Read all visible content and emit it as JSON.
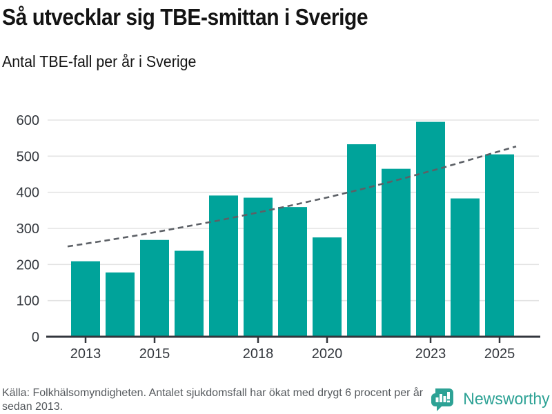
{
  "header": {
    "title": "Så utvecklar sig TBE-smittan i Sverige",
    "subtitle": "Antal TBE-fall per år i Sverige"
  },
  "chart_data": {
    "type": "bar",
    "title": "Så utvecklar sig TBE-smittan i Sverige",
    "subtitle": "Antal TBE-fall per år i Sverige",
    "categories": [
      2013,
      2014,
      2015,
      2016,
      2017,
      2018,
      2019,
      2020,
      2021,
      2022,
      2023,
      2024,
      2025
    ],
    "values": [
      209,
      178,
      268,
      238,
      391,
      385,
      359,
      275,
      533,
      465,
      595,
      383,
      505
    ],
    "series_name": "Antal TBE-fall per år",
    "trend": {
      "type": "line",
      "style": "dashed",
      "description": "Trend: ökning med drygt 6 procent per år sedan 2013",
      "values": [
        250,
        266,
        283,
        302,
        321,
        342,
        364,
        387,
        412,
        439,
        467,
        497,
        527
      ]
    },
    "xtick_labels": [
      "2013",
      "2015",
      "2018",
      "2020",
      "2023",
      "2025"
    ],
    "yticks": [
      0,
      100,
      200,
      300,
      400,
      500,
      600
    ],
    "ylim": [
      0,
      600
    ],
    "grid": "horizontal",
    "legend": "none",
    "colors": {
      "bar": "#00a39a",
      "trend": "#5c6066",
      "grid": "#e3e3e3",
      "axis": "#32363c",
      "tick_label": "#34383e"
    }
  },
  "footer": {
    "source_text": "Källa: Folkhälsomyndigheten. Antalet sjukdomsfall har ökat med drygt 6 procent per år sedan 2013.",
    "brand": {
      "name": "Newsworthy",
      "color": "#2da295"
    }
  }
}
